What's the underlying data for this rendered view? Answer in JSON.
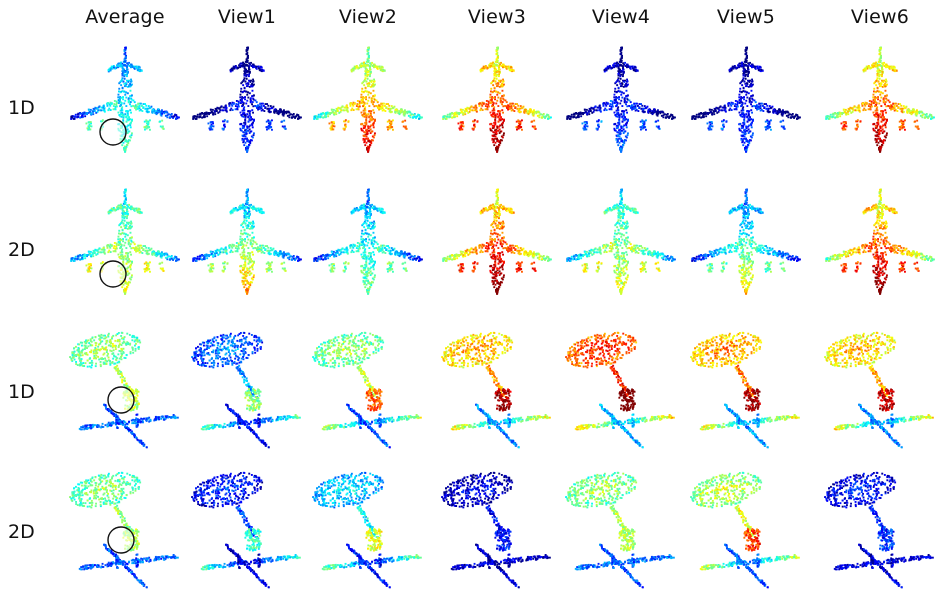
{
  "columns": [
    "Average",
    "View1",
    "View2",
    "View3",
    "View4",
    "View5",
    "View6"
  ],
  "rows": [
    {
      "label": "1D",
      "object": "airplane",
      "heat": [
        0.35,
        0.08,
        0.62,
        0.72,
        0.12,
        0.1,
        0.7
      ],
      "hot_tail": [
        false,
        false,
        true,
        true,
        false,
        false,
        true
      ],
      "circled": [
        true,
        false,
        false,
        false,
        false,
        false,
        false
      ]
    },
    {
      "label": "2D",
      "object": "airplane",
      "heat": [
        0.5,
        0.42,
        0.38,
        0.74,
        0.5,
        0.36,
        0.72
      ],
      "hot_tail": [
        false,
        true,
        false,
        true,
        false,
        true,
        true
      ],
      "circled": [
        true,
        false,
        false,
        false,
        false,
        false,
        false
      ]
    },
    {
      "label": "1D",
      "object": "lamp",
      "heat": [
        0.5,
        0.22,
        0.5,
        0.68,
        0.8,
        0.7,
        0.66
      ],
      "hot_tail": [
        false,
        true,
        true,
        true,
        true,
        true,
        true
      ],
      "circled": [
        true,
        false,
        false,
        false,
        false,
        false,
        false
      ]
    },
    {
      "label": "2D",
      "object": "lamp",
      "heat": [
        0.48,
        0.14,
        0.32,
        0.08,
        0.5,
        0.54,
        0.12
      ],
      "hot_tail": [
        false,
        true,
        true,
        false,
        false,
        true,
        false
      ],
      "circled": [
        true,
        false,
        false,
        false,
        false,
        false,
        false
      ]
    }
  ]
}
